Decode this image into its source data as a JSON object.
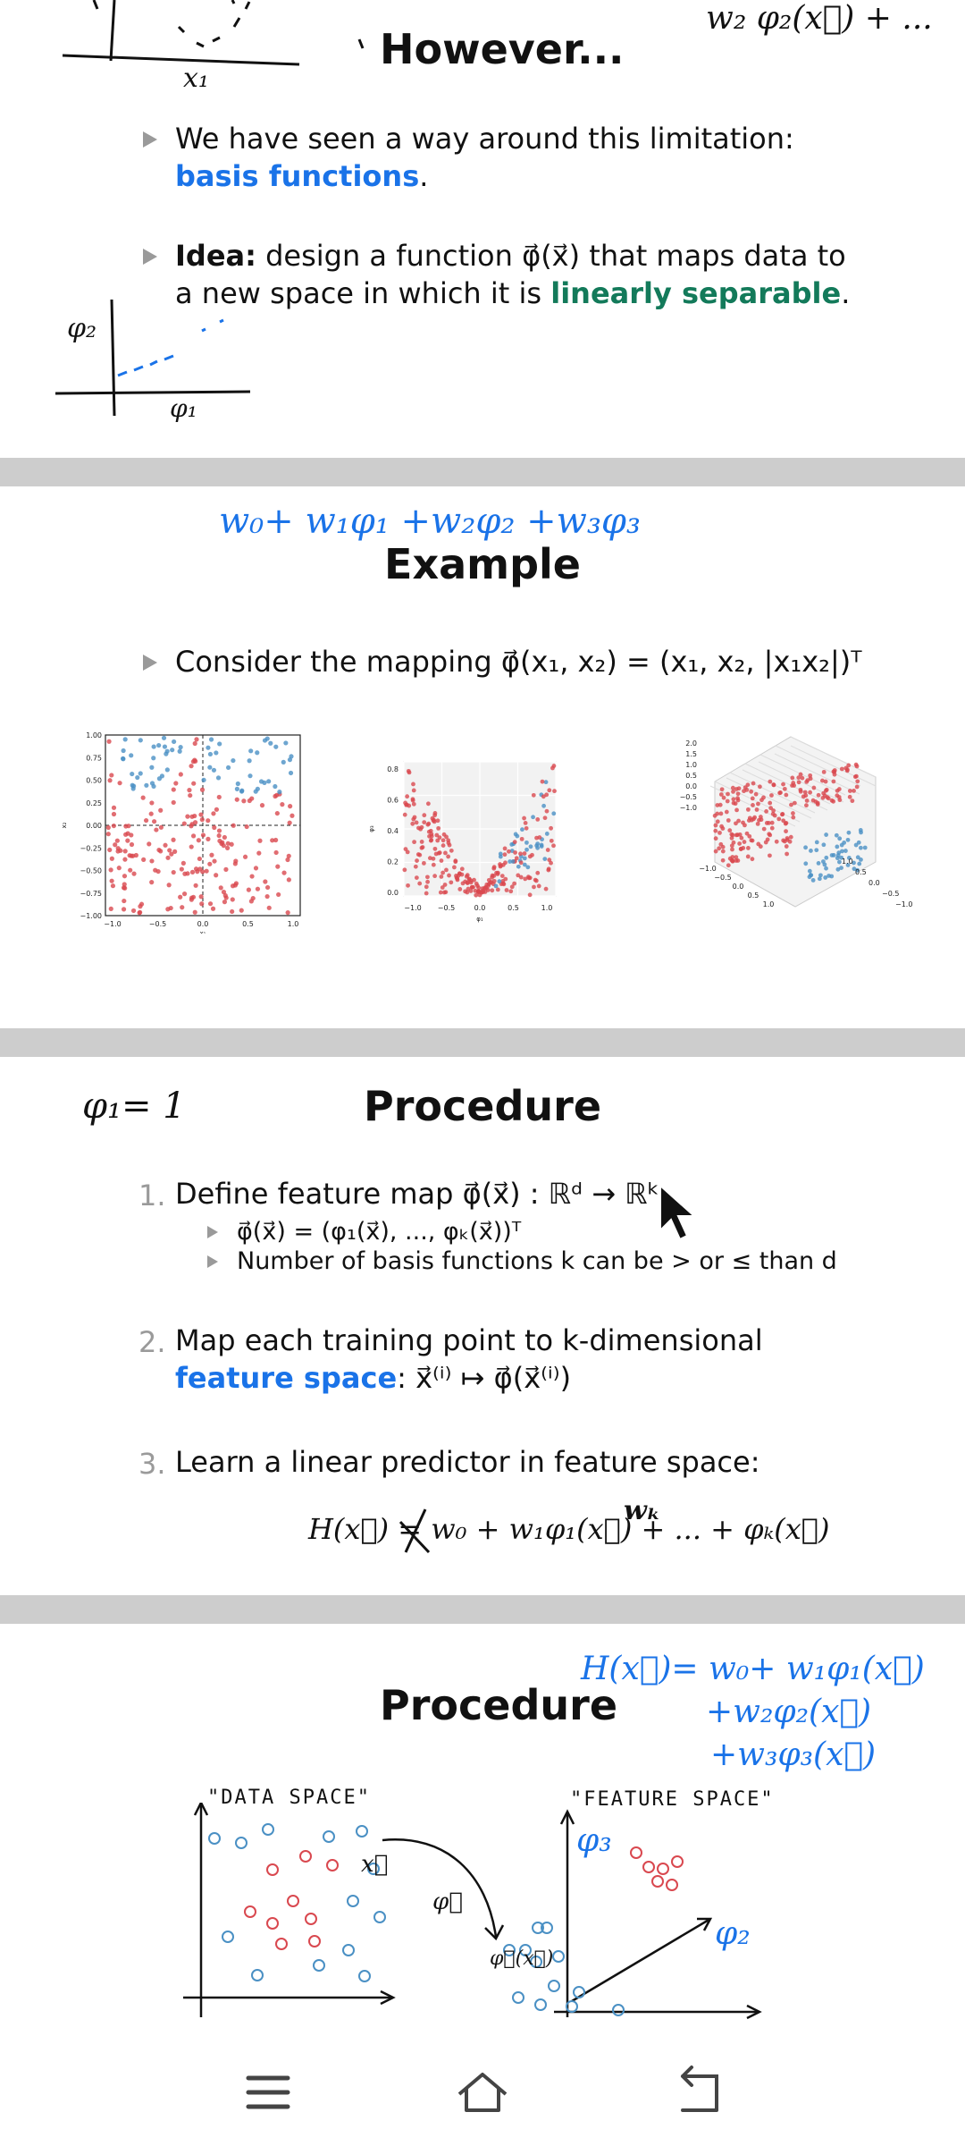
{
  "slide1": {
    "title": "However...",
    "bullet1_a": "We have seen a way around this limitation: ",
    "bullet1_b": "basis functions",
    "bullet1_c": ".",
    "bullet2_bold": "Idea:",
    "bullet2_a": " design a function φ⃗(x⃗) that maps data to a new space in which it is ",
    "bullet2_b": "linearly separable",
    "bullet2_c": ".",
    "ink_x1": "x₁",
    "ink_phi2": "φ₂",
    "ink_phi1": "φ₁",
    "ink_topright": "w₂ φ₂(x⃗) + ..."
  },
  "slide2": {
    "title": "Example",
    "ink": "w₀+ w₁φ₁ +w₂φ₂ +w₃φ₃",
    "bullet": "Consider the mapping φ⃗(x₁, x₂) = (x₁, x₂, |x₁x₂|)ᵀ",
    "plot1": {
      "yticks": [
        "1.00",
        "0.75",
        "0.50",
        "0.25",
        "0.00",
        "−0.25",
        "−0.50",
        "−0.75",
        "−1.00"
      ],
      "xticks": [
        "−1.0",
        "−0.5",
        "0.0",
        "0.5",
        "1.0"
      ],
      "xlabel": "x₁",
      "ylabel": "x₂"
    },
    "plot2": {
      "yticks": [
        "0.8",
        "0.6",
        "0.4",
        "0.2",
        "0.0"
      ],
      "xticks": [
        "−1.0",
        "−0.5",
        "0.0",
        "0.5",
        "1.0"
      ],
      "xlabel": "φ₁",
      "ylabel": "φ₃"
    },
    "plot3": {
      "zticks": [
        "2.0",
        "1.5",
        "1.0",
        "0.5",
        "0.0",
        "−0.5",
        "−1.0"
      ],
      "xticks": [
        "−1.0",
        "−0.5",
        "0.0",
        "0.5",
        "1.0"
      ],
      "yticks": [
        "−1.0",
        "−0.5",
        "0.0",
        "0.5",
        "1.0"
      ]
    }
  },
  "slide3": {
    "title": "Procedure",
    "ink": "φ₁= 1",
    "step1_num": "1.",
    "step1": "Define feature map φ⃗(x⃗) : ℝᵈ → ℝᵏ",
    "step1_sub1": "φ⃗(x⃗) = (φ₁(x⃗), ..., φₖ(x⃗))ᵀ",
    "step1_sub2": "Number of basis functions k can be > or ≤ than d",
    "step2_num": "2.",
    "step2_a": "Map each training point to k-dimensional",
    "step2_b": "feature space",
    "step2_c": ": x⃗⁽ⁱ⁾ ↦ φ⃗(x⃗⁽ⁱ⁾)",
    "step3_num": "3.",
    "step3": "Learn a linear predictor in feature space:",
    "formula": "H(x⃗) = w₀ + w₁φ₁(x⃗) + ... + φₖ(x⃗)",
    "ink_wk": "wₖ"
  },
  "slide4": {
    "title": "Procedure",
    "ink_line1": "H(x⃗)= w₀+ w₁φ₁(x⃗)",
    "ink_line2": "+w₂φ₂(x⃗)",
    "ink_line3": "+w₃φ₃(x⃗)",
    "label_data": "\"DATA SPACE\"",
    "label_feature": "\"FEATURE SPACE\"",
    "ink_x": "x⃗",
    "ink_phi": "φ⃗",
    "ink_phix": "φ⃗(x⃗)",
    "ink_phi3": "φ₃",
    "ink_phi2": "φ₂"
  },
  "navbar": {
    "menu": "menu-icon",
    "home": "home-icon",
    "back": "back-icon"
  }
}
